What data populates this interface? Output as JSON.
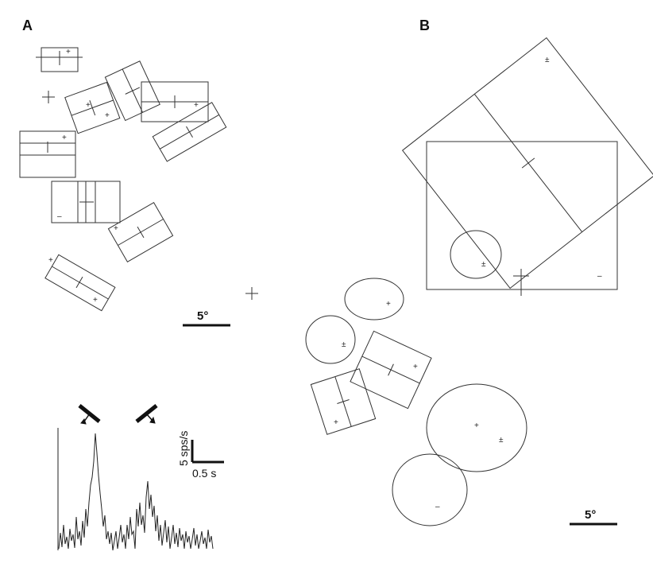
{
  "panels": {
    "a_label": "A",
    "b_label": "B"
  },
  "panel_a": {
    "scale_bar_label": "5°",
    "psth": {
      "y_scale_label": "5 sps/s",
      "x_scale_label": "0.5 s"
    }
  },
  "panel_b": {
    "scale_bar_label": "5°"
  },
  "symbols": {
    "plus": "+",
    "minus": "–",
    "plus_minus": "±"
  }
}
